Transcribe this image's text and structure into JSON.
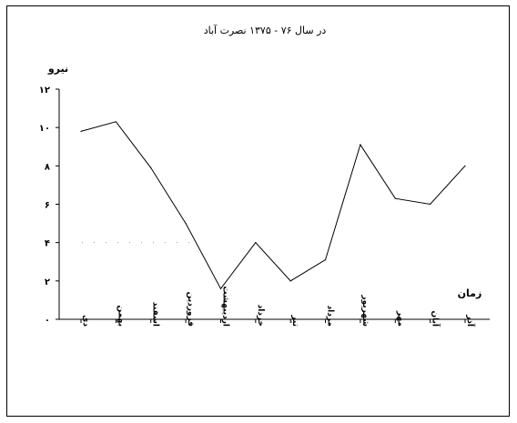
{
  "chart_data": {
    "type": "line",
    "title": "در سال ۷۶ - ۱۳۷۵ نصرت آباد",
    "ylabel": "نیرو",
    "xlabel": "زمان",
    "ylim": [
      0,
      12
    ],
    "yticks": [
      0,
      2,
      4,
      6,
      8,
      10,
      12
    ],
    "ytick_labels": [
      "۰",
      "۲",
      "۴",
      "۶",
      "۸",
      "۱۰",
      "۱۲"
    ],
    "categories": [
      "دی",
      "بهمن",
      "اسفند",
      "فروردین",
      "اردیبهشت",
      "خرداد",
      "تیر",
      "مرداد",
      "شهریور",
      "مهر",
      "آبان",
      "آذر"
    ],
    "values": [
      9.8,
      10.3,
      7.9,
      5.0,
      1.6,
      4.0,
      2.0,
      3.1,
      9.1,
      6.3,
      6.0,
      8.0
    ],
    "reference_line": {
      "value": 4,
      "style": "dotted"
    },
    "line_color": "#000000"
  }
}
